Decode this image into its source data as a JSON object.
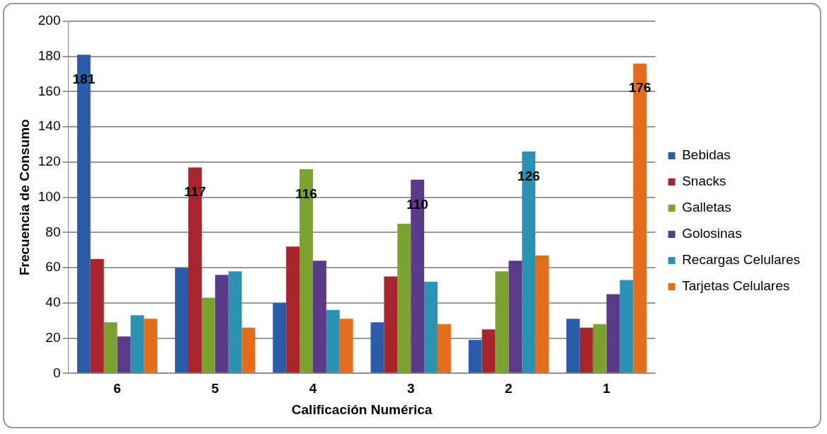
{
  "chart_data": {
    "type": "bar",
    "xlabel": "Calificación Numérica",
    "ylabel": "Frecuencia de Consumo",
    "categories": [
      "6",
      "5",
      "4",
      "3",
      "2",
      "1"
    ],
    "series": [
      {
        "name": "Bebidas",
        "color": "#2a5caa",
        "values": [
          181,
          60,
          40,
          29,
          19,
          31
        ],
        "value_labels": [
          "181",
          null,
          null,
          null,
          null,
          null
        ]
      },
      {
        "name": "Snacks",
        "color": "#a8252c",
        "values": [
          65,
          117,
          72,
          55,
          25,
          26
        ],
        "value_labels": [
          null,
          "117",
          null,
          null,
          null,
          null
        ]
      },
      {
        "name": "Galletas",
        "color": "#7aa22e",
        "values": [
          29,
          43,
          116,
          85,
          58,
          28
        ],
        "value_labels": [
          null,
          null,
          "116",
          null,
          null,
          null
        ]
      },
      {
        "name": "Golosinas",
        "color": "#5b3a8a",
        "values": [
          21,
          56,
          64,
          110,
          64,
          45
        ],
        "value_labels": [
          null,
          null,
          null,
          "110",
          null,
          null
        ]
      },
      {
        "name": "Recargas Celulares",
        "color": "#2a93b3",
        "values": [
          33,
          58,
          36,
          52,
          126,
          53
        ],
        "value_labels": [
          null,
          null,
          null,
          null,
          "126",
          null
        ]
      },
      {
        "name": "Tarjetas Celulares",
        "color": "#e36d1a",
        "values": [
          31,
          26,
          31,
          28,
          67,
          176
        ],
        "value_labels": [
          null,
          null,
          null,
          null,
          null,
          "176"
        ]
      }
    ],
    "ylim": [
      0,
      200
    ],
    "yticks": [
      0,
      20,
      40,
      60,
      80,
      100,
      120,
      140,
      160,
      180,
      200
    ],
    "grid": "y",
    "legend": "right"
  }
}
